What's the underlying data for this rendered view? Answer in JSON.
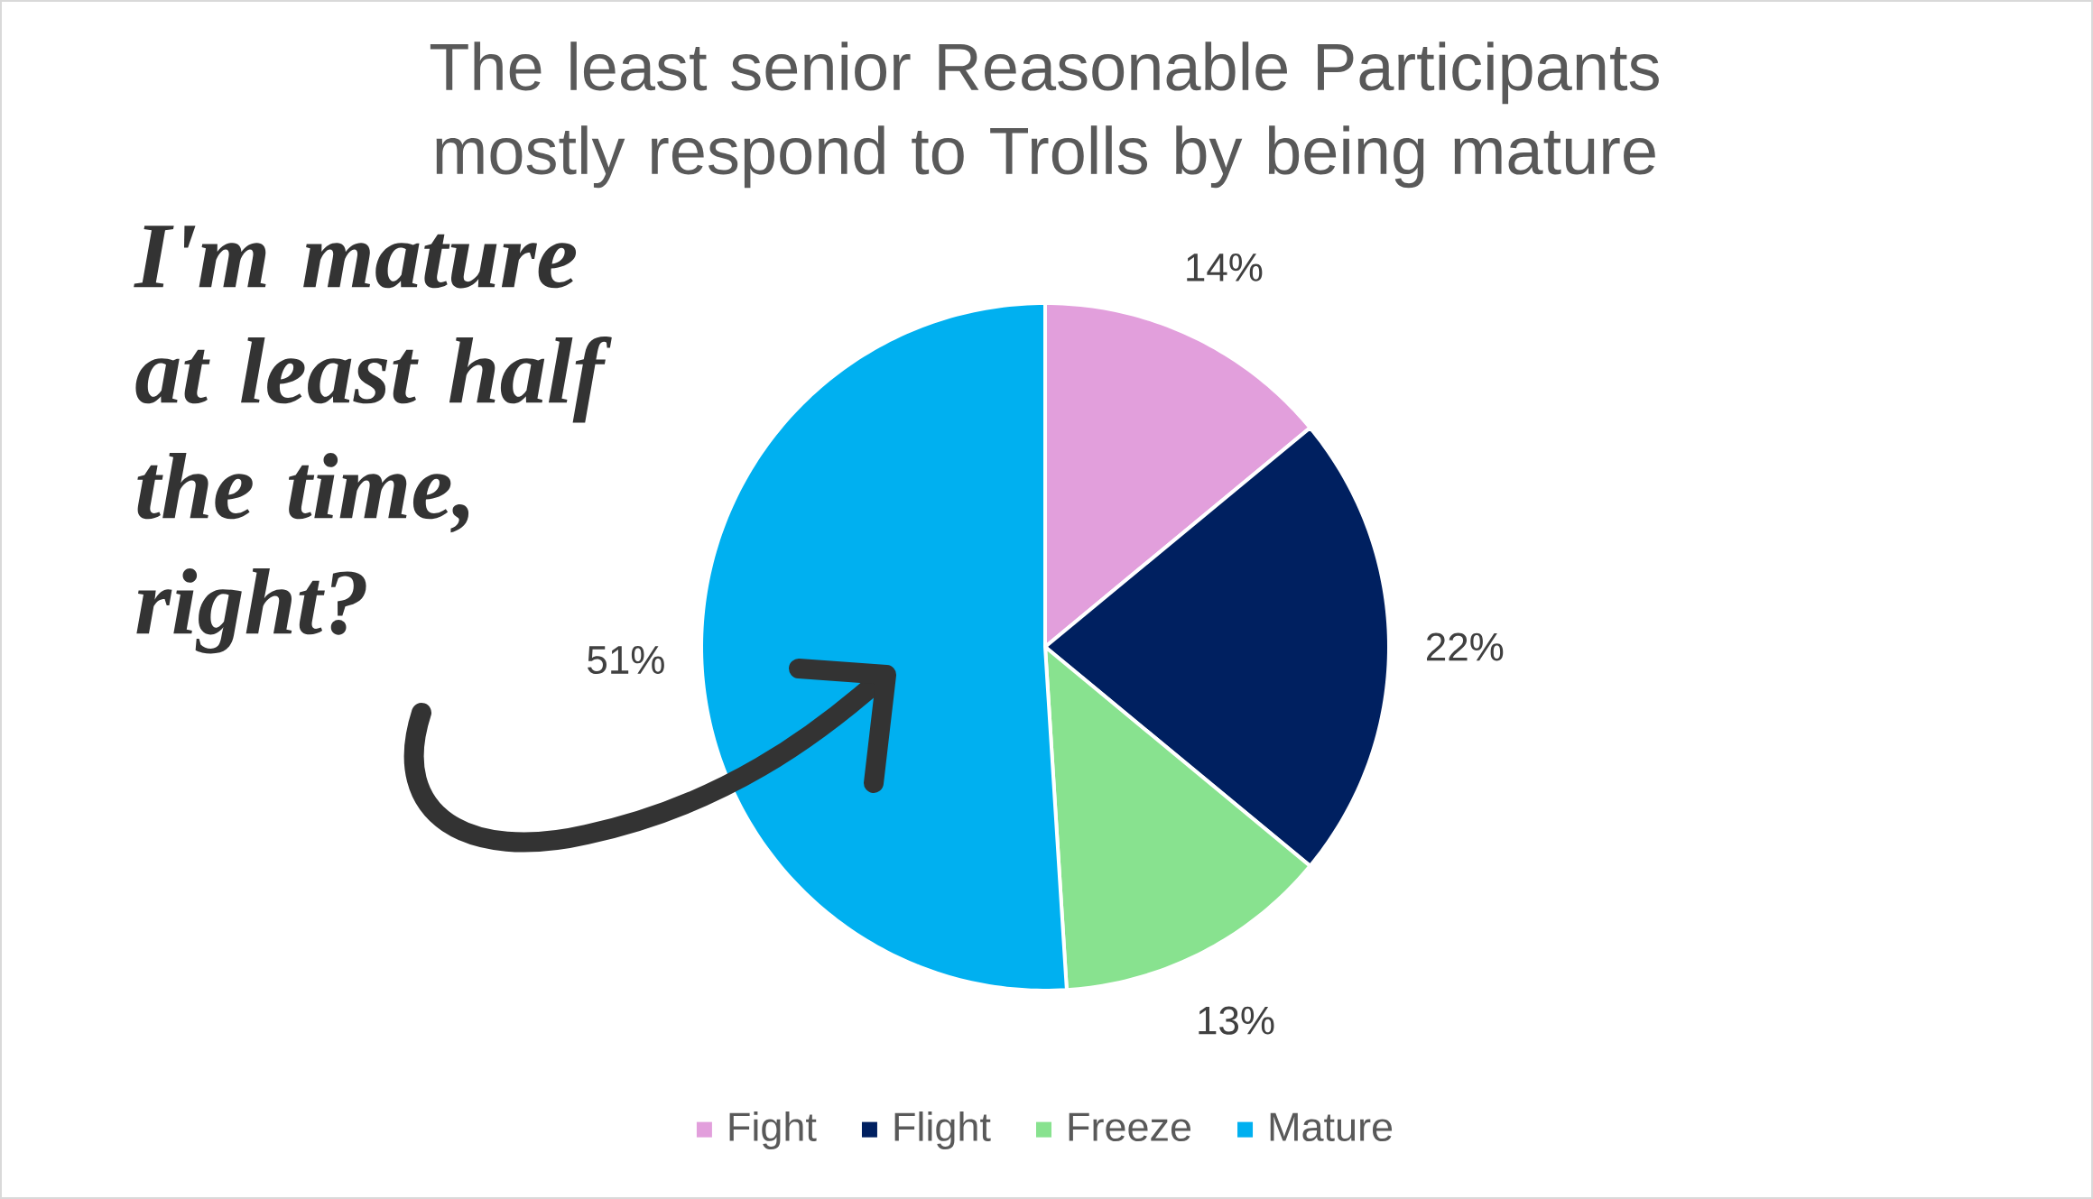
{
  "chart_data": {
    "type": "pie",
    "title": "The least senior Reasonable Participants mostly respond to Trolls by being mature",
    "categories": [
      "Fight",
      "Flight",
      "Freeze",
      "Mature"
    ],
    "values": [
      14,
      22,
      13,
      51
    ],
    "colors": [
      "#e29fdc",
      "#002060",
      "#88e28f",
      "#00b0f0"
    ],
    "value_labels": [
      "14%",
      "22%",
      "13%",
      "51%"
    ],
    "legend": "bottom",
    "annotations": [
      "I'm mature at least half the time, right?"
    ]
  }
}
